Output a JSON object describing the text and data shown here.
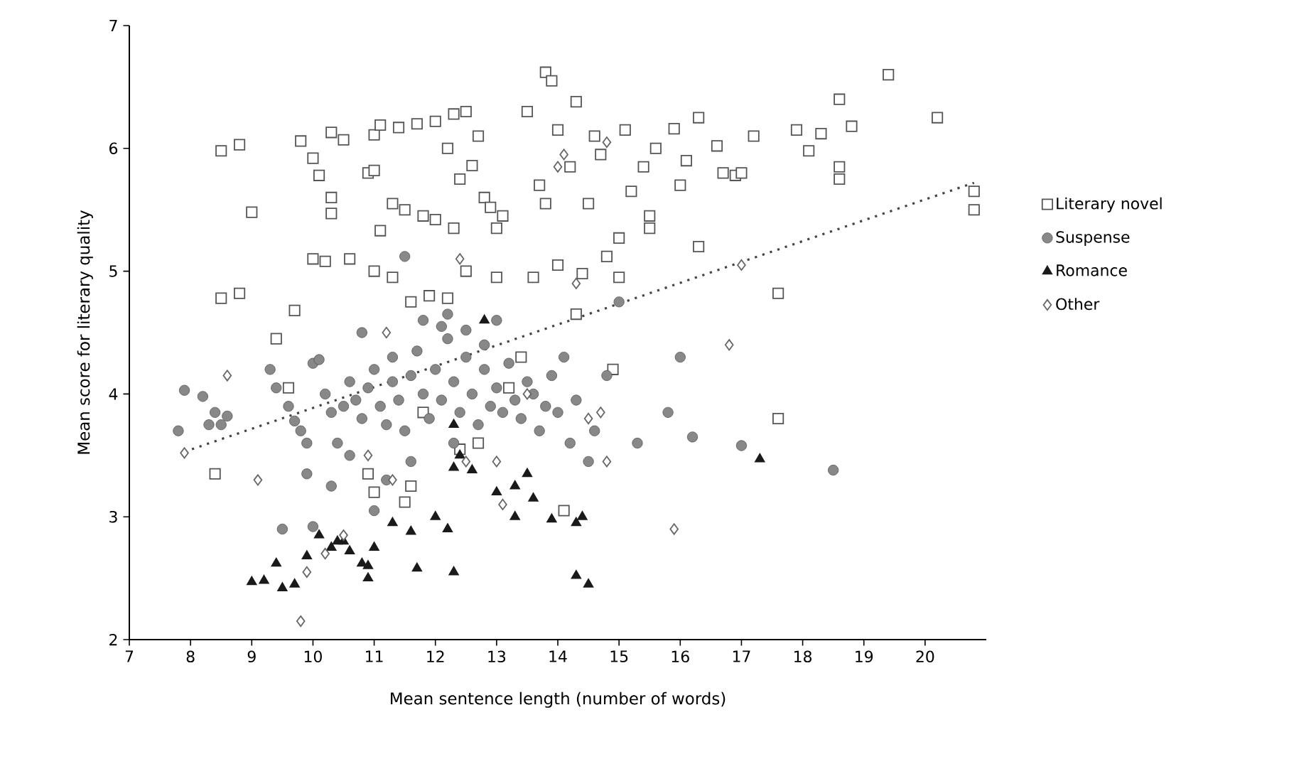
{
  "chart_data": {
    "type": "scatter",
    "xlabel": "Mean sentence length (number of words)",
    "ylabel": "Mean score for literary quality",
    "xlim": [
      7,
      21
    ],
    "ylim": [
      2,
      7
    ],
    "xticks": [
      7,
      8,
      9,
      10,
      11,
      12,
      13,
      14,
      15,
      16,
      17,
      18,
      19,
      20
    ],
    "yticks": [
      2,
      3,
      4,
      5,
      6,
      7
    ],
    "legend": "right",
    "grid": false,
    "series": [
      {
        "name": "Literary novel",
        "color": "#555555",
        "marker": "square",
        "x": [
          8.5,
          8.8,
          9.0,
          8.5,
          8.8,
          9.8,
          10.0,
          10.1,
          10.3,
          10.5,
          10.3,
          10.3,
          10.0,
          10.2,
          10.6,
          11.0,
          11.1,
          10.9,
          11.0,
          11.4,
          11.7,
          12.0,
          12.3,
          12.5,
          12.7,
          12.2,
          12.6,
          12.4,
          12.8,
          13.1,
          13.0,
          12.9,
          11.3,
          11.5,
          11.8,
          12.0,
          12.3,
          11.1,
          11.0,
          11.3,
          11.6,
          11.9,
          12.2,
          12.5,
          13.0,
          13.5,
          13.8,
          13.9,
          14.3,
          14.0,
          14.6,
          15.1,
          15.6,
          15.9,
          16.3,
          16.1,
          15.4,
          14.7,
          14.2,
          13.7,
          13.8,
          14.5,
          15.2,
          15.5,
          15.0,
          14.8,
          14.4,
          14.0,
          13.6,
          14.3,
          15.0,
          16.6,
          16.7,
          16.9,
          17.2,
          17.9,
          18.3,
          18.6,
          18.8,
          19.4,
          20.2,
          18.1,
          17.0,
          18.6,
          18.6,
          16.0,
          17.6,
          20.8,
          20.8,
          15.5,
          16.3,
          17.6,
          14.9,
          13.2,
          11.5,
          11.0,
          8.4,
          9.6,
          9.4,
          9.7,
          11.8,
          10.9,
          14.1,
          12.4,
          11.6,
          13.4,
          12.7
        ],
        "values": [
          5.98,
          6.03,
          5.48,
          4.78,
          4.82,
          6.06,
          5.92,
          5.78,
          6.13,
          6.07,
          5.6,
          5.47,
          5.1,
          5.08,
          5.1,
          6.11,
          6.19,
          5.8,
          5.82,
          6.17,
          6.2,
          6.22,
          6.28,
          6.3,
          6.1,
          6.0,
          5.86,
          5.75,
          5.6,
          5.45,
          5.35,
          5.52,
          5.55,
          5.5,
          5.45,
          5.42,
          5.35,
          5.33,
          5.0,
          4.95,
          4.75,
          4.8,
          4.78,
          5.0,
          4.95,
          6.3,
          6.62,
          6.55,
          6.38,
          6.15,
          6.1,
          6.15,
          6.0,
          6.16,
          6.25,
          5.9,
          5.85,
          5.95,
          5.85,
          5.7,
          5.55,
          5.55,
          5.65,
          5.35,
          5.27,
          5.12,
          4.98,
          5.05,
          4.95,
          4.65,
          4.95,
          6.02,
          5.8,
          5.78,
          6.1,
          6.15,
          6.12,
          6.4,
          6.18,
          6.6,
          6.25,
          5.98,
          5.8,
          5.85,
          5.75,
          5.7,
          4.82,
          5.65,
          5.5,
          5.45,
          5.2,
          3.8,
          4.2,
          4.05,
          3.12,
          3.2,
          3.35,
          4.05,
          4.45,
          4.68,
          3.85,
          3.35,
          3.05,
          3.55,
          3.25,
          4.3,
          3.6
        ]
      },
      {
        "name": "Suspense",
        "color": "#888888",
        "marker": "circle",
        "x": [
          7.8,
          7.9,
          8.2,
          8.3,
          8.4,
          8.5,
          8.6,
          9.3,
          9.4,
          9.6,
          9.7,
          9.8,
          10.0,
          10.1,
          10.2,
          10.3,
          10.4,
          10.5,
          10.6,
          10.7,
          10.8,
          10.9,
          11.0,
          11.1,
          11.2,
          11.3,
          11.4,
          11.5,
          11.6,
          11.7,
          11.8,
          11.9,
          12.0,
          12.1,
          12.2,
          12.3,
          12.4,
          12.5,
          12.6,
          12.7,
          12.8,
          12.9,
          13.0,
          13.1,
          13.2,
          13.3,
          13.4,
          13.5,
          13.6,
          13.7,
          13.8,
          13.9,
          14.0,
          14.2,
          14.3,
          14.5,
          14.6,
          14.8,
          15.3,
          15.8,
          16.0,
          16.2,
          17.0,
          18.5,
          9.5,
          10.0,
          9.9,
          10.3,
          10.6,
          11.0,
          11.2,
          11.5,
          11.8,
          12.2,
          12.5,
          13.0,
          14.1,
          15.0,
          9.9,
          10.8,
          11.3,
          12.1,
          12.8,
          12.3,
          11.6
        ],
        "values": [
          3.7,
          4.03,
          3.98,
          3.75,
          3.85,
          3.75,
          3.82,
          4.2,
          4.05,
          3.9,
          3.78,
          3.7,
          4.25,
          4.28,
          4.0,
          3.85,
          3.6,
          3.9,
          4.1,
          3.95,
          3.8,
          4.05,
          4.2,
          3.9,
          3.75,
          4.1,
          3.95,
          3.7,
          4.15,
          4.35,
          4.0,
          3.8,
          4.2,
          3.95,
          4.45,
          4.1,
          3.85,
          4.3,
          4.0,
          3.75,
          4.2,
          3.9,
          4.05,
          3.85,
          4.25,
          3.95,
          3.8,
          4.1,
          4.0,
          3.7,
          3.9,
          4.15,
          3.85,
          3.6,
          3.95,
          3.45,
          3.7,
          4.15,
          3.6,
          3.85,
          4.3,
          3.65,
          3.58,
          3.38,
          2.9,
          2.92,
          3.35,
          3.25,
          3.5,
          3.05,
          3.3,
          5.12,
          4.6,
          4.65,
          4.52,
          4.6,
          4.3,
          4.75,
          3.6,
          4.5,
          4.3,
          4.55,
          4.4,
          3.6,
          3.45
        ]
      },
      {
        "name": "Romance",
        "color": "#1a1a1a",
        "marker": "triangle",
        "x": [
          9.0,
          9.2,
          9.4,
          9.5,
          9.7,
          9.9,
          10.1,
          10.3,
          10.4,
          10.6,
          10.8,
          10.9,
          11.0,
          11.3,
          11.6,
          11.7,
          12.0,
          12.2,
          12.3,
          12.3,
          12.4,
          12.6,
          12.3,
          12.8,
          13.0,
          13.3,
          13.3,
          13.5,
          13.6,
          13.9,
          14.3,
          14.3,
          14.5,
          14.4,
          17.3,
          10.5,
          10.9
        ],
        "values": [
          2.47,
          2.48,
          2.62,
          2.42,
          2.45,
          2.68,
          2.85,
          2.75,
          2.8,
          2.72,
          2.62,
          2.5,
          2.75,
          2.95,
          2.88,
          2.58,
          3.0,
          2.9,
          2.55,
          3.4,
          3.5,
          3.38,
          3.75,
          4.6,
          3.2,
          3.0,
          3.25,
          3.35,
          3.15,
          2.98,
          2.95,
          2.52,
          2.45,
          3.0,
          3.47,
          2.8,
          2.6
        ]
      },
      {
        "name": "Other",
        "color": "#666666",
        "marker": "diamond",
        "x": [
          7.9,
          8.6,
          9.1,
          9.8,
          9.9,
          10.2,
          10.5,
          10.9,
          11.3,
          11.2,
          12.4,
          12.5,
          13.0,
          13.1,
          13.5,
          14.0,
          14.1,
          14.8,
          14.3,
          14.7,
          14.8,
          15.9,
          16.8,
          17.0,
          14.5
        ],
        "values": [
          3.52,
          4.15,
          3.3,
          2.15,
          2.55,
          2.7,
          2.85,
          3.5,
          3.3,
          4.5,
          5.1,
          3.45,
          3.45,
          3.1,
          4.0,
          5.85,
          5.95,
          6.05,
          4.9,
          3.85,
          3.45,
          2.9,
          4.4,
          5.05,
          3.8
        ]
      },
      {
        "type": "line",
        "color": "#444444",
        "line_style": "dotted",
        "marker": "none",
        "x": [
          7.9,
          20.8
        ],
        "values": [
          3.53,
          5.72
        ]
      }
    ]
  }
}
